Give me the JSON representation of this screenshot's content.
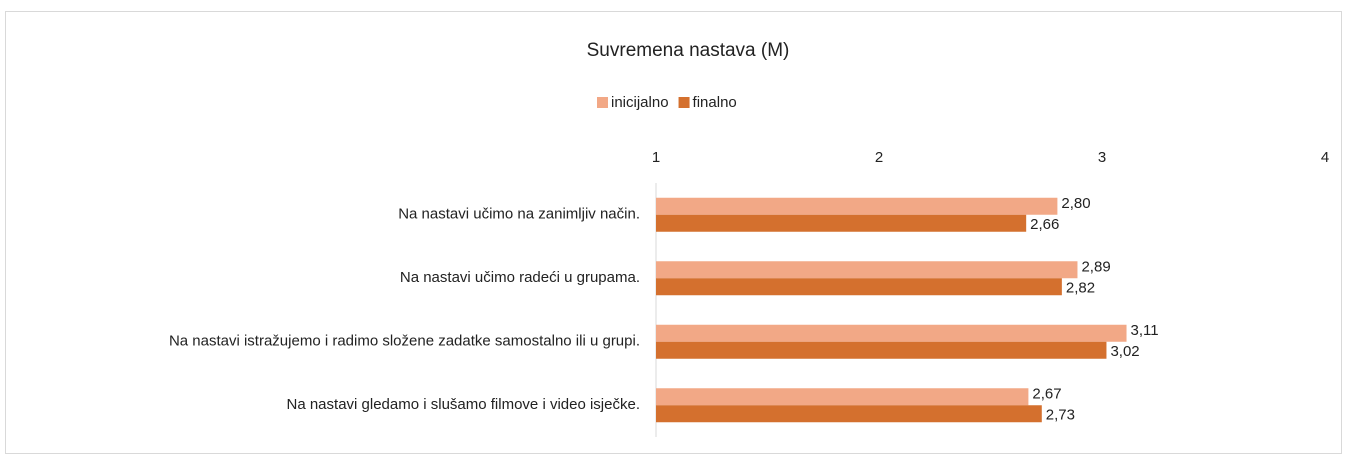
{
  "chart_data": {
    "type": "hbar",
    "title": "Suvremena nastava (M)",
    "categories": [
      "Na nastavi učimo na zanimljiv način.",
      "Na nastavi učimo radeći u grupama.",
      "Na nastavi istražujemo i radimo složene zadatke samostalno ili u grupi.",
      "Na nastavi gledamo i slušamo filmove i video isječke."
    ],
    "series": [
      {
        "name": "inicijalno",
        "color": "#f2a886",
        "values": [
          2.8,
          2.89,
          3.11,
          2.67
        ],
        "value_labels": [
          "2,80",
          "2,89",
          "3,11",
          "2,67"
        ]
      },
      {
        "name": "finalno",
        "color": "#d4702e",
        "values": [
          2.66,
          2.82,
          3.02,
          2.73
        ],
        "value_labels": [
          "2,66",
          "2,82",
          "3,02",
          "2,73"
        ]
      }
    ],
    "xlim": [
      1,
      4
    ],
    "xticks": [
      1,
      2,
      3,
      4
    ]
  }
}
